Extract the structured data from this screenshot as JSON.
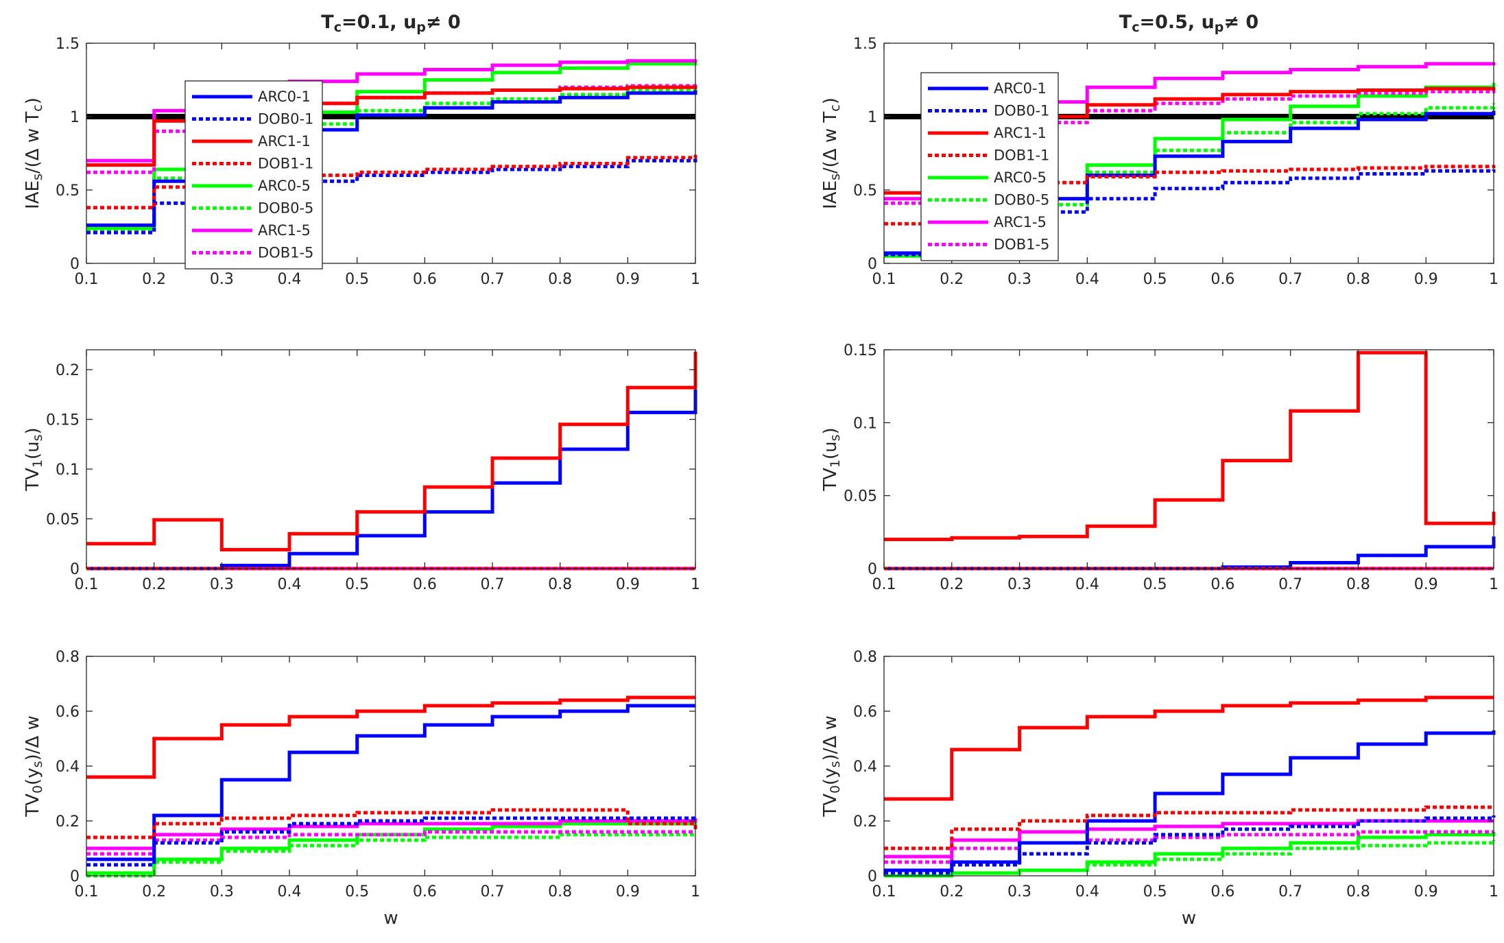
{
  "figure": {
    "xlabel": "w"
  },
  "chart_data": [
    {
      "type": "line",
      "step": true,
      "title": "T_c=0.1, u_p≠ 0",
      "ylabel": "IAE_s/(Δ w T_c)",
      "xlim": [
        0.1,
        1
      ],
      "ylim": [
        0,
        1.5
      ],
      "xticks": [
        0.1,
        0.2,
        0.3,
        0.4,
        0.5,
        0.6,
        0.7,
        0.8,
        0.9,
        1
      ],
      "yticks": [
        0,
        0.5,
        1,
        1.5
      ],
      "reference_line": 1,
      "x": [
        0.1,
        0.2,
        0.3,
        0.4,
        0.5,
        0.6,
        0.7,
        0.8,
        0.9,
        1
      ],
      "series": [
        {
          "name": "ARC0-1",
          "color": "#0000ff",
          "dash": false,
          "values": [
            0.26,
            0.56,
            0.78,
            0.91,
            1.01,
            1.06,
            1.1,
            1.13,
            1.16,
            1.18
          ]
        },
        {
          "name": "DOB0-1",
          "color": "#0000ff",
          "dash": true,
          "values": [
            0.21,
            0.41,
            0.5,
            0.56,
            0.6,
            0.62,
            0.64,
            0.66,
            0.7,
            0.72
          ]
        },
        {
          "name": "ARC1-1",
          "color": "#ff0000",
          "dash": false,
          "values": [
            0.67,
            0.97,
            1.04,
            1.09,
            1.13,
            1.16,
            1.18,
            1.19,
            1.2,
            1.21
          ]
        },
        {
          "name": "DOB1-1",
          "color": "#ff0000",
          "dash": true,
          "values": [
            0.38,
            0.52,
            0.57,
            0.6,
            0.62,
            0.64,
            0.66,
            0.68,
            0.72,
            0.74
          ]
        },
        {
          "name": "ARC0-5",
          "color": "#00ff00",
          "dash": false,
          "values": [
            0.24,
            0.64,
            0.92,
            1.03,
            1.17,
            1.25,
            1.3,
            1.33,
            1.36,
            1.38
          ]
        },
        {
          "name": "DOB0-5",
          "color": "#00ff00",
          "dash": true,
          "values": [
            0.22,
            0.58,
            0.82,
            0.95,
            1.04,
            1.09,
            1.12,
            1.15,
            1.18,
            1.2
          ]
        },
        {
          "name": "ARC1-5",
          "color": "#ff00ff",
          "dash": false,
          "values": [
            0.7,
            1.04,
            1.17,
            1.24,
            1.29,
            1.32,
            1.35,
            1.37,
            1.38,
            1.39
          ]
        },
        {
          "name": "DOB1-5",
          "color": "#ff00ff",
          "dash": true,
          "values": [
            0.62,
            0.9,
            1.03,
            1.09,
            1.13,
            1.16,
            1.18,
            1.2,
            1.21,
            1.22
          ]
        }
      ]
    },
    {
      "type": "line",
      "step": true,
      "title": "T_c=0.5, u_p≠ 0",
      "ylabel": "IAE_s/(Δ w T_c)",
      "xlim": [
        0.1,
        1
      ],
      "ylim": [
        0,
        1.5
      ],
      "xticks": [
        0.1,
        0.2,
        0.3,
        0.4,
        0.5,
        0.6,
        0.7,
        0.8,
        0.9,
        1
      ],
      "yticks": [
        0,
        0.5,
        1,
        1.5
      ],
      "reference_line": 1,
      "x": [
        0.1,
        0.2,
        0.3,
        0.4,
        0.5,
        0.6,
        0.7,
        0.8,
        0.9,
        1
      ],
      "series": [
        {
          "name": "ARC0-1",
          "color": "#0000ff",
          "dash": false,
          "values": [
            0.07,
            0.25,
            0.44,
            0.6,
            0.73,
            0.83,
            0.92,
            0.98,
            1.02,
            1.04
          ]
        },
        {
          "name": "DOB0-1",
          "color": "#0000ff",
          "dash": true,
          "values": [
            0.06,
            0.2,
            0.35,
            0.44,
            0.51,
            0.55,
            0.58,
            0.61,
            0.63,
            0.64
          ]
        },
        {
          "name": "ARC1-1",
          "color": "#ff0000",
          "dash": false,
          "values": [
            0.48,
            0.84,
            1.0,
            1.08,
            1.12,
            1.15,
            1.17,
            1.18,
            1.19,
            1.2
          ]
        },
        {
          "name": "DOB1-1",
          "color": "#ff0000",
          "dash": true,
          "values": [
            0.27,
            0.48,
            0.55,
            0.59,
            0.62,
            0.63,
            0.64,
            0.65,
            0.66,
            0.67
          ]
        },
        {
          "name": "ARC0-5",
          "color": "#00ff00",
          "dash": false,
          "values": [
            0.05,
            0.2,
            0.44,
            0.67,
            0.85,
            0.98,
            1.07,
            1.14,
            1.2,
            1.23
          ]
        },
        {
          "name": "DOB0-5",
          "color": "#00ff00",
          "dash": true,
          "values": [
            0.05,
            0.19,
            0.4,
            0.62,
            0.77,
            0.89,
            0.96,
            1.02,
            1.06,
            1.09
          ]
        },
        {
          "name": "ARC1-5",
          "color": "#ff00ff",
          "dash": false,
          "values": [
            0.44,
            0.89,
            1.1,
            1.2,
            1.26,
            1.3,
            1.32,
            1.34,
            1.36,
            1.37
          ]
        },
        {
          "name": "DOB1-5",
          "color": "#ff00ff",
          "dash": true,
          "values": [
            0.41,
            0.79,
            0.96,
            1.04,
            1.09,
            1.12,
            1.14,
            1.16,
            1.17,
            1.18
          ]
        }
      ]
    },
    {
      "type": "line",
      "step": true,
      "title": "",
      "ylabel": "TV_1(u_s)",
      "xlim": [
        0.1,
        1
      ],
      "ylim": [
        0,
        0.22
      ],
      "xticks": [
        0.1,
        0.2,
        0.3,
        0.4,
        0.5,
        0.6,
        0.7,
        0.8,
        0.9,
        1
      ],
      "yticks": [
        0,
        0.05,
        0.1,
        0.15,
        0.2
      ],
      "legend": "inside-top-left",
      "x": [
        0.1,
        0.2,
        0.3,
        0.4,
        0.5,
        0.6,
        0.7,
        0.8,
        0.9,
        1
      ],
      "series": [
        {
          "name": "ARC0-1",
          "color": "#0000ff",
          "dash": false,
          "values": [
            0,
            0,
            0.003,
            0.015,
            0.033,
            0.057,
            0.086,
            0.12,
            0.157,
            0.18
          ]
        },
        {
          "name": "DOB0-1",
          "color": "#0000ff",
          "dash": true,
          "values": [
            0,
            0,
            0,
            0,
            0,
            0,
            0,
            0,
            0,
            0
          ]
        },
        {
          "name": "ARC1-1",
          "color": "#ff0000",
          "dash": false,
          "values": [
            0.025,
            0.049,
            0.019,
            0.035,
            0.057,
            0.082,
            0.111,
            0.145,
            0.182,
            0.218
          ]
        },
        {
          "name": "DOB1-1",
          "color": "#ff0000",
          "dash": true,
          "values": [
            0,
            0,
            0,
            0,
            0,
            0,
            0,
            0,
            0,
            0
          ]
        },
        {
          "name": "ARC0-5",
          "color": "#00ff00",
          "dash": false,
          "values": [
            0,
            0,
            0,
            0,
            0,
            0,
            0,
            0,
            0,
            0
          ]
        },
        {
          "name": "DOB0-5",
          "color": "#00ff00",
          "dash": true,
          "values": [
            0,
            0,
            0,
            0,
            0,
            0,
            0,
            0,
            0,
            0
          ]
        },
        {
          "name": "ARC1-5",
          "color": "#ff00ff",
          "dash": false,
          "values": [
            0,
            0,
            0,
            0,
            0,
            0,
            0,
            0,
            0,
            0
          ]
        },
        {
          "name": "DOB1-5",
          "color": "#ff00ff",
          "dash": true,
          "values": [
            0,
            0,
            0,
            0,
            0,
            0,
            0,
            0,
            0,
            0
          ]
        }
      ]
    },
    {
      "type": "line",
      "step": true,
      "title": "",
      "ylabel": "TV_1(u_s)",
      "xlim": [
        0.1,
        1
      ],
      "ylim": [
        0,
        0.15
      ],
      "xticks": [
        0.1,
        0.2,
        0.3,
        0.4,
        0.5,
        0.6,
        0.7,
        0.8,
        0.9,
        1
      ],
      "yticks": [
        0,
        0.05,
        0.1,
        0.15
      ],
      "legend": "inside-top-left",
      "x": [
        0.1,
        0.2,
        0.3,
        0.4,
        0.5,
        0.6,
        0.7,
        0.8,
        0.9,
        1
      ],
      "series": [
        {
          "name": "ARC0-1",
          "color": "#0000ff",
          "dash": false,
          "values": [
            0,
            0,
            0,
            0,
            0,
            0.001,
            0.004,
            0.009,
            0.015,
            0.022
          ]
        },
        {
          "name": "DOB0-1",
          "color": "#0000ff",
          "dash": true,
          "values": [
            0,
            0,
            0,
            0,
            0,
            0,
            0,
            0,
            0,
            0
          ]
        },
        {
          "name": "ARC1-1",
          "color": "#ff0000",
          "dash": false,
          "values": [
            0.02,
            0.021,
            0.022,
            0.029,
            0.047,
            0.074,
            0.108,
            0.148,
            0.031,
            0.039
          ]
        },
        {
          "name": "DOB1-1",
          "color": "#ff0000",
          "dash": true,
          "values": [
            0,
            0,
            0,
            0,
            0,
            0,
            0,
            0,
            0,
            0
          ]
        },
        {
          "name": "ARC0-5",
          "color": "#00ff00",
          "dash": false,
          "values": [
            0,
            0,
            0,
            0,
            0,
            0,
            0,
            0,
            0,
            0
          ]
        },
        {
          "name": "DOB0-5",
          "color": "#00ff00",
          "dash": true,
          "values": [
            0,
            0,
            0,
            0,
            0,
            0,
            0,
            0,
            0,
            0
          ]
        },
        {
          "name": "ARC1-5",
          "color": "#ff00ff",
          "dash": false,
          "values": [
            0,
            0,
            0,
            0,
            0,
            0,
            0,
            0,
            0,
            0
          ]
        },
        {
          "name": "DOB1-5",
          "color": "#ff00ff",
          "dash": true,
          "values": [
            0,
            0,
            0,
            0,
            0,
            0,
            0,
            0,
            0,
            0
          ]
        }
      ]
    },
    {
      "type": "line",
      "step": true,
      "title": "",
      "ylabel": "TV_0(y_s)/Δ w",
      "xlabel": "w",
      "xlim": [
        0.1,
        1
      ],
      "ylim": [
        0,
        0.8
      ],
      "xticks": [
        0.1,
        0.2,
        0.3,
        0.4,
        0.5,
        0.6,
        0.7,
        0.8,
        0.9,
        1
      ],
      "yticks": [
        0,
        0.2,
        0.4,
        0.6,
        0.8
      ],
      "x": [
        0.1,
        0.2,
        0.3,
        0.4,
        0.5,
        0.6,
        0.7,
        0.8,
        0.9,
        1
      ],
      "series": [
        {
          "name": "ARC0-1",
          "color": "#0000ff",
          "dash": false,
          "values": [
            0.06,
            0.22,
            0.35,
            0.45,
            0.51,
            0.55,
            0.58,
            0.6,
            0.62,
            0.62
          ]
        },
        {
          "name": "DOB0-1",
          "color": "#0000ff",
          "dash": true,
          "values": [
            0.04,
            0.12,
            0.16,
            0.19,
            0.2,
            0.21,
            0.21,
            0.21,
            0.21,
            0.21
          ]
        },
        {
          "name": "ARC1-1",
          "color": "#ff0000",
          "dash": false,
          "values": [
            0.36,
            0.5,
            0.55,
            0.58,
            0.6,
            0.62,
            0.63,
            0.64,
            0.65,
            0.65
          ]
        },
        {
          "name": "DOB1-1",
          "color": "#ff0000",
          "dash": true,
          "values": [
            0.14,
            0.19,
            0.21,
            0.22,
            0.23,
            0.23,
            0.24,
            0.24,
            0.19,
            0.17
          ]
        },
        {
          "name": "ARC0-5",
          "color": "#00ff00",
          "dash": false,
          "values": [
            0.01,
            0.06,
            0.1,
            0.13,
            0.15,
            0.17,
            0.18,
            0.19,
            0.19,
            0.18
          ]
        },
        {
          "name": "DOB0-5",
          "color": "#00ff00",
          "dash": true,
          "values": [
            0.0,
            0.05,
            0.09,
            0.11,
            0.13,
            0.14,
            0.14,
            0.15,
            0.15,
            0.15
          ]
        },
        {
          "name": "ARC1-5",
          "color": "#ff00ff",
          "dash": false,
          "values": [
            0.1,
            0.15,
            0.17,
            0.18,
            0.19,
            0.19,
            0.19,
            0.2,
            0.2,
            0.21
          ]
        },
        {
          "name": "DOB1-5",
          "color": "#ff00ff",
          "dash": true,
          "values": [
            0.08,
            0.13,
            0.14,
            0.15,
            0.15,
            0.16,
            0.16,
            0.16,
            0.16,
            0.16
          ]
        }
      ]
    },
    {
      "type": "line",
      "step": true,
      "title": "",
      "ylabel": "TV_0(y_s)/Δ w",
      "xlabel": "w",
      "xlim": [
        0.1,
        1
      ],
      "ylim": [
        0,
        0.8
      ],
      "xticks": [
        0.1,
        0.2,
        0.3,
        0.4,
        0.5,
        0.6,
        0.7,
        0.8,
        0.9,
        1
      ],
      "yticks": [
        0,
        0.2,
        0.4,
        0.6,
        0.8
      ],
      "x": [
        0.1,
        0.2,
        0.3,
        0.4,
        0.5,
        0.6,
        0.7,
        0.8,
        0.9,
        1
      ],
      "series": [
        {
          "name": "ARC0-1",
          "color": "#0000ff",
          "dash": false,
          "values": [
            0.02,
            0.05,
            0.12,
            0.2,
            0.3,
            0.37,
            0.43,
            0.48,
            0.52,
            0.53
          ]
        },
        {
          "name": "DOB0-1",
          "color": "#0000ff",
          "dash": true,
          "values": [
            0.01,
            0.04,
            0.08,
            0.12,
            0.15,
            0.17,
            0.18,
            0.2,
            0.21,
            0.22
          ]
        },
        {
          "name": "ARC1-1",
          "color": "#ff0000",
          "dash": false,
          "values": [
            0.28,
            0.46,
            0.54,
            0.58,
            0.6,
            0.62,
            0.63,
            0.64,
            0.65,
            0.65
          ]
        },
        {
          "name": "DOB1-1",
          "color": "#ff0000",
          "dash": true,
          "values": [
            0.1,
            0.17,
            0.2,
            0.22,
            0.23,
            0.23,
            0.24,
            0.24,
            0.25,
            0.25
          ]
        },
        {
          "name": "ARC0-5",
          "color": "#00ff00",
          "dash": false,
          "values": [
            0.0,
            0.01,
            0.02,
            0.05,
            0.08,
            0.1,
            0.12,
            0.14,
            0.15,
            0.16
          ]
        },
        {
          "name": "DOB0-5",
          "color": "#00ff00",
          "dash": true,
          "values": [
            0.0,
            0.01,
            0.02,
            0.04,
            0.06,
            0.08,
            0.1,
            0.11,
            0.12,
            0.13
          ]
        },
        {
          "name": "ARC1-5",
          "color": "#ff00ff",
          "dash": false,
          "values": [
            0.07,
            0.13,
            0.16,
            0.17,
            0.18,
            0.19,
            0.19,
            0.2,
            0.2,
            0.2
          ]
        },
        {
          "name": "DOB1-5",
          "color": "#ff00ff",
          "dash": true,
          "values": [
            0.05,
            0.1,
            0.12,
            0.13,
            0.14,
            0.15,
            0.15,
            0.16,
            0.16,
            0.16
          ]
        }
      ]
    }
  ]
}
